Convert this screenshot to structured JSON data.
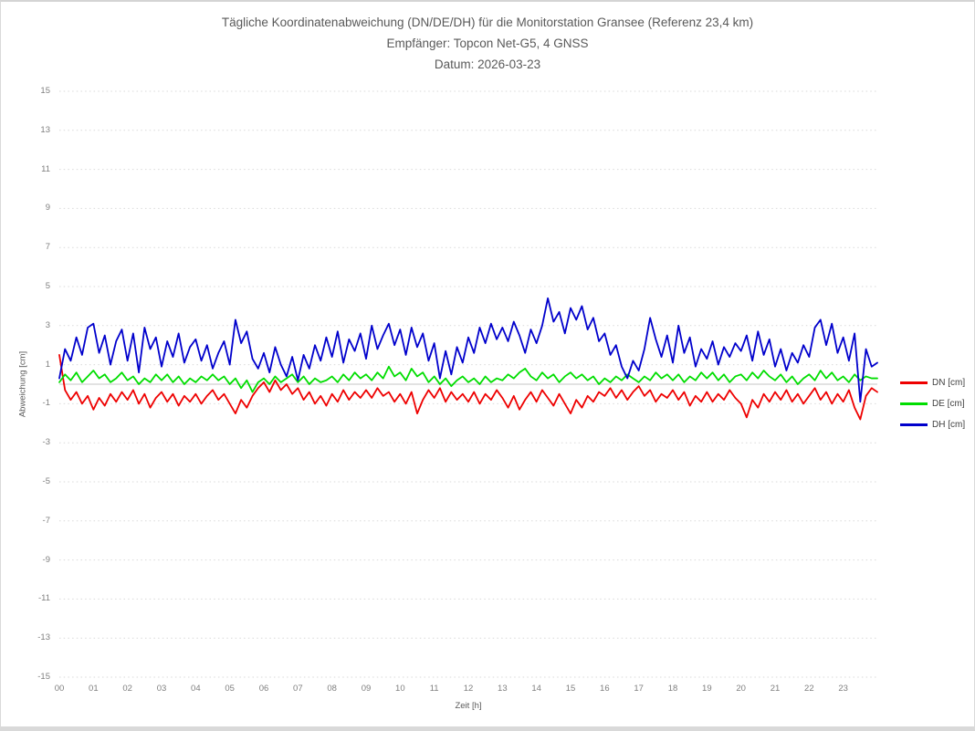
{
  "title": {
    "line1": "Tägliche Koordinatenabweichung (DN/DE/DH) für die Monitorstation Gransee (Referenz 23,4 km)",
    "line2": "Empfänger: Topcon Net-G5, 4 GNSS",
    "line3": "Datum: 2026-03-23"
  },
  "chart_data": {
    "type": "line",
    "title": "Tägliche Koordinatenabweichung (DN/DE/DH) für die Monitorstation Gransee (Referenz 23,4 km)",
    "subtitle": "Empfänger: Topcon Net-G5, 4 GNSS",
    "date_line": "Datum: 2026-03-23",
    "xlabel": "Zeit [h]",
    "ylabel": "Abweichung [cm]",
    "xlim": [
      0,
      24
    ],
    "ylim": [
      -15,
      15
    ],
    "x_ticks": [
      "00",
      "01",
      "02",
      "03",
      "04",
      "05",
      "06",
      "07",
      "08",
      "09",
      "10",
      "11",
      "12",
      "13",
      "14",
      "15",
      "16",
      "17",
      "18",
      "19",
      "20",
      "21",
      "22",
      "23"
    ],
    "y_ticks": [
      15,
      13,
      11,
      9,
      7,
      5,
      3,
      1,
      -1,
      -3,
      -5,
      -7,
      -9,
      -11,
      -13,
      -15
    ],
    "grid": "horizontal-dotted, zero line solid",
    "grid_color": "#d9d9d9",
    "zero_line_color": "#c6c6c6",
    "legend_position": "right",
    "x_start_hour": 0,
    "x_interval_minutes": 10,
    "series": [
      {
        "name": "DN [cm]",
        "color": "#ee0000",
        "values": [
          1.5,
          -0.3,
          -0.8,
          -0.4,
          -1.0,
          -0.6,
          -1.3,
          -0.7,
          -1.1,
          -0.5,
          -0.9,
          -0.4,
          -0.8,
          -0.3,
          -1.0,
          -0.5,
          -1.2,
          -0.7,
          -0.4,
          -0.9,
          -0.5,
          -1.1,
          -0.6,
          -0.9,
          -0.5,
          -1.0,
          -0.6,
          -0.3,
          -0.8,
          -0.5,
          -1.0,
          -1.5,
          -0.8,
          -1.2,
          -0.6,
          -0.2,
          0.1,
          -0.4,
          0.2,
          -0.3,
          0.0,
          -0.5,
          -0.2,
          -0.8,
          -0.4,
          -1.0,
          -0.6,
          -1.1,
          -0.5,
          -0.9,
          -0.3,
          -0.8,
          -0.4,
          -0.7,
          -0.3,
          -0.7,
          -0.2,
          -0.6,
          -0.4,
          -0.9,
          -0.5,
          -1.0,
          -0.4,
          -1.5,
          -0.8,
          -0.3,
          -0.7,
          -0.2,
          -0.9,
          -0.4,
          -0.8,
          -0.5,
          -0.9,
          -0.4,
          -1.0,
          -0.5,
          -0.8,
          -0.3,
          -0.7,
          -1.2,
          -0.6,
          -1.3,
          -0.8,
          -0.4,
          -0.9,
          -0.3,
          -0.7,
          -1.1,
          -0.5,
          -1.0,
          -1.5,
          -0.8,
          -1.2,
          -0.6,
          -0.9,
          -0.4,
          -0.6,
          -0.2,
          -0.7,
          -0.3,
          -0.8,
          -0.4,
          -0.1,
          -0.6,
          -0.3,
          -0.9,
          -0.5,
          -0.7,
          -0.3,
          -0.8,
          -0.4,
          -1.1,
          -0.6,
          -0.9,
          -0.4,
          -0.9,
          -0.5,
          -0.8,
          -0.3,
          -0.7,
          -1.0,
          -1.7,
          -0.8,
          -1.2,
          -0.5,
          -0.9,
          -0.4,
          -0.8,
          -0.3,
          -0.9,
          -0.5,
          -1.0,
          -0.6,
          -0.2,
          -0.8,
          -0.4,
          -1.0,
          -0.5,
          -0.9,
          -0.3,
          -1.2,
          -1.8,
          -0.6,
          -0.2,
          -0.4
        ]
      },
      {
        "name": "DE [cm]",
        "color": "#00dd00",
        "values": [
          0.1,
          0.5,
          0.2,
          0.6,
          0.1,
          0.4,
          0.7,
          0.3,
          0.5,
          0.1,
          0.3,
          0.6,
          0.2,
          0.4,
          0.0,
          0.3,
          0.1,
          0.5,
          0.2,
          0.5,
          0.1,
          0.4,
          0.0,
          0.3,
          0.1,
          0.4,
          0.2,
          0.5,
          0.2,
          0.4,
          0.0,
          0.3,
          -0.2,
          0.2,
          -0.4,
          0.1,
          0.3,
          0.0,
          0.4,
          0.1,
          0.3,
          0.5,
          0.1,
          0.4,
          0.0,
          0.3,
          0.1,
          0.2,
          0.4,
          0.1,
          0.5,
          0.2,
          0.6,
          0.3,
          0.5,
          0.2,
          0.6,
          0.3,
          0.9,
          0.4,
          0.6,
          0.2,
          0.8,
          0.4,
          0.6,
          0.1,
          0.4,
          0.0,
          0.3,
          -0.1,
          0.2,
          0.4,
          0.1,
          0.3,
          0.0,
          0.4,
          0.1,
          0.3,
          0.2,
          0.5,
          0.3,
          0.6,
          0.8,
          0.4,
          0.2,
          0.6,
          0.3,
          0.5,
          0.1,
          0.4,
          0.6,
          0.3,
          0.5,
          0.2,
          0.4,
          0.0,
          0.3,
          0.1,
          0.4,
          0.2,
          0.5,
          0.3,
          0.1,
          0.4,
          0.2,
          0.6,
          0.3,
          0.5,
          0.2,
          0.5,
          0.1,
          0.4,
          0.2,
          0.6,
          0.3,
          0.6,
          0.2,
          0.5,
          0.1,
          0.4,
          0.5,
          0.2,
          0.6,
          0.3,
          0.7,
          0.4,
          0.2,
          0.5,
          0.1,
          0.4,
          0.0,
          0.3,
          0.5,
          0.2,
          0.7,
          0.3,
          0.6,
          0.2,
          0.4,
          0.1,
          0.5,
          0.2,
          0.4,
          0.3,
          0.3
        ]
      },
      {
        "name": "DH [cm]",
        "color": "#0000cc",
        "values": [
          0.3,
          1.8,
          1.2,
          2.4,
          1.5,
          2.9,
          3.1,
          1.6,
          2.5,
          1.0,
          2.2,
          2.8,
          1.2,
          2.6,
          0.6,
          2.9,
          1.8,
          2.4,
          0.9,
          2.2,
          1.4,
          2.6,
          1.1,
          1.9,
          2.3,
          1.2,
          2.0,
          0.8,
          1.6,
          2.2,
          1.0,
          3.3,
          2.1,
          2.7,
          1.3,
          0.8,
          1.6,
          0.6,
          1.9,
          1.0,
          0.4,
          1.4,
          0.2,
          1.5,
          0.8,
          2.0,
          1.2,
          2.4,
          1.4,
          2.7,
          1.1,
          2.3,
          1.7,
          2.6,
          1.3,
          3.0,
          1.8,
          2.5,
          3.1,
          2.0,
          2.8,
          1.5,
          2.9,
          1.9,
          2.6,
          1.2,
          2.1,
          0.3,
          1.7,
          0.5,
          1.9,
          1.1,
          2.4,
          1.6,
          2.9,
          2.1,
          3.1,
          2.3,
          2.9,
          2.2,
          3.2,
          2.5,
          1.6,
          2.8,
          2.1,
          3.0,
          4.4,
          3.2,
          3.7,
          2.6,
          3.9,
          3.3,
          4.0,
          2.8,
          3.4,
          2.2,
          2.6,
          1.5,
          2.0,
          0.9,
          0.3,
          1.2,
          0.7,
          1.8,
          3.4,
          2.3,
          1.4,
          2.5,
          1.1,
          3.0,
          1.6,
          2.4,
          0.9,
          1.8,
          1.3,
          2.2,
          1.0,
          1.9,
          1.4,
          2.1,
          1.7,
          2.5,
          1.2,
          2.7,
          1.5,
          2.3,
          0.9,
          1.8,
          0.7,
          1.6,
          1.1,
          2.0,
          1.4,
          2.9,
          3.3,
          2.0,
          3.1,
          1.6,
          2.4,
          1.2,
          2.6,
          -0.9,
          1.8,
          0.9,
          1.1
        ]
      }
    ]
  }
}
